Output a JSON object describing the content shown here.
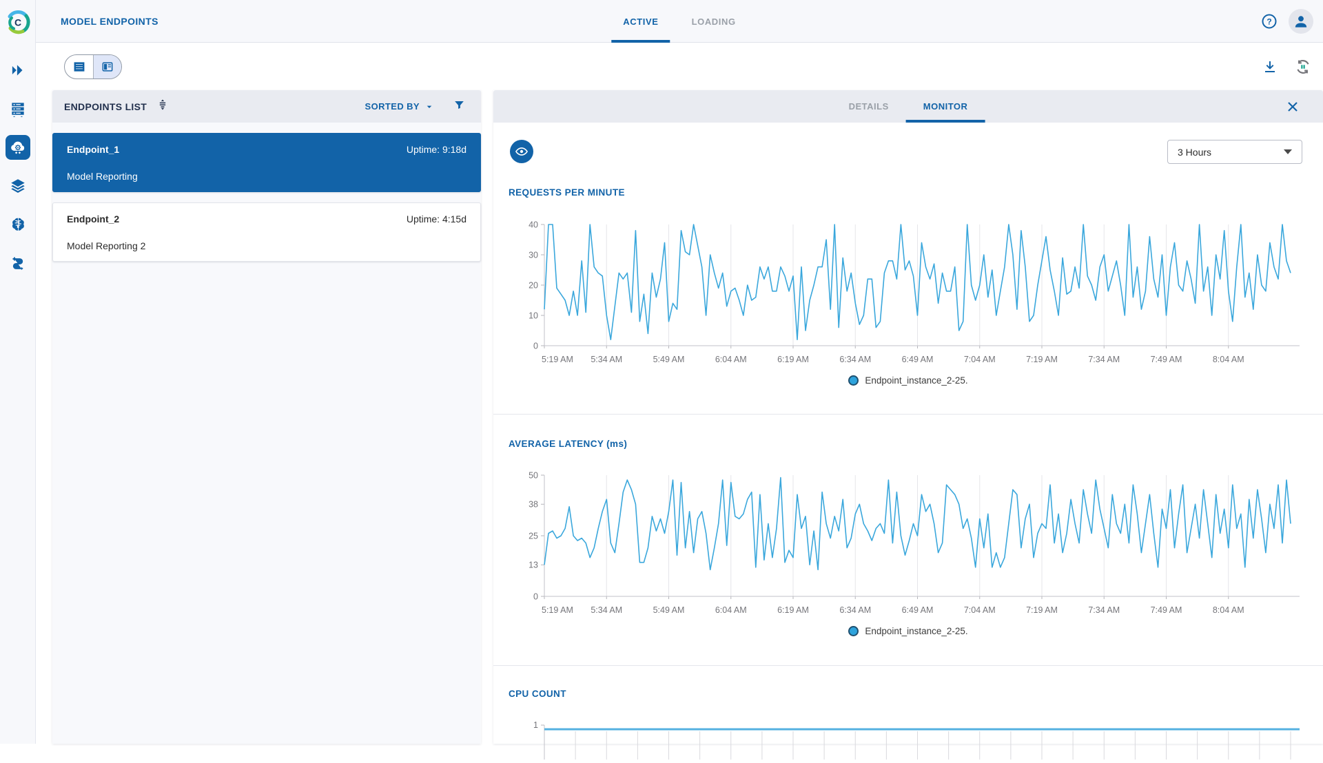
{
  "app": {
    "title": "MODEL ENDPOINTS",
    "accent_color": "#1263a8",
    "header_tabs": [
      {
        "label": "ACTIVE",
        "active": true
      },
      {
        "label": "LOADING",
        "active": false
      }
    ],
    "help_icon": "question-mark-circle",
    "user_icon": "person-avatar"
  },
  "sidebar": {
    "icons": [
      {
        "name": "expand-double-chevron-icon",
        "active": false
      },
      {
        "name": "server-rack-icon",
        "active": false
      },
      {
        "name": "model-endpoints-cloud-gear-icon",
        "active": true
      },
      {
        "name": "layers-icon",
        "active": false
      },
      {
        "name": "brain-icon",
        "active": false
      },
      {
        "name": "pipeline-flow-icon",
        "active": false
      }
    ]
  },
  "toolbar": {
    "view_toggle": [
      {
        "name": "table-view",
        "active": false
      },
      {
        "name": "split-view",
        "active": true
      }
    ],
    "actions": [
      {
        "name": "download"
      },
      {
        "name": "auto-refresh-pause"
      }
    ]
  },
  "endpoints_panel": {
    "title": "ENDPOINTS LIST",
    "sorted_by_label": "SORTED BY",
    "items": [
      {
        "name": "Endpoint_1",
        "uptime": "Uptime: 9:18d",
        "description": "Model Reporting",
        "selected": true
      },
      {
        "name": "Endpoint_2",
        "uptime": "Uptime: 4:15d",
        "description": "Model Reporting 2",
        "selected": false
      }
    ]
  },
  "monitor_panel": {
    "tabs": [
      {
        "label": "DETAILS",
        "active": false
      },
      {
        "label": "MONITOR",
        "active": true
      }
    ],
    "time_range_value": "3 Hours"
  },
  "chart_data": [
    {
      "type": "line",
      "title": "REQUESTS PER MINUTE",
      "series_label": "Endpoint_instance_2-25.",
      "color": "#3aa7dc",
      "x_labels": [
        "5:19 AM",
        "5:34 AM",
        "5:49 AM",
        "6:04 AM",
        "6:19 AM",
        "6:34 AM",
        "6:49 AM",
        "7:04 AM",
        "7:19 AM",
        "7:34 AM",
        "7:49 AM",
        "8:04 AM"
      ],
      "x_label_step_min": 15,
      "x_total_min": 180,
      "ylim": [
        0,
        40
      ],
      "yticks": [
        0,
        10,
        20,
        30,
        40
      ],
      "grid": "vertical-only",
      "legend_position": "bottom-center",
      "values": [
        12,
        40,
        40,
        19,
        17,
        15,
        10,
        18,
        10,
        28,
        11,
        40,
        26,
        24,
        23,
        10,
        2,
        13,
        24,
        22,
        24,
        11,
        38,
        8,
        17,
        4,
        24,
        16,
        22,
        34,
        8,
        14,
        12,
        38,
        31,
        30,
        40,
        33,
        26,
        10,
        30,
        24,
        19,
        24,
        13,
        18,
        19,
        15,
        10,
        20,
        15,
        16,
        26,
        22,
        26,
        18,
        18,
        26,
        23,
        18,
        23,
        2,
        26,
        5,
        15,
        20,
        26,
        26,
        35,
        12,
        40,
        6,
        29,
        18,
        24,
        14,
        7,
        10,
        22,
        22,
        6,
        8,
        24,
        28,
        28,
        22,
        40,
        25,
        28,
        23,
        10,
        34,
        26,
        22,
        27,
        14,
        24,
        18,
        18,
        26,
        5,
        8,
        40,
        20,
        15,
        20,
        30,
        16,
        25,
        10,
        18,
        26,
        40,
        30,
        12,
        38,
        26,
        8,
        10,
        20,
        28,
        36,
        25,
        18,
        10,
        29,
        17,
        18,
        26,
        19,
        40,
        23,
        20,
        15,
        26,
        30,
        18,
        23,
        28,
        20,
        10,
        40,
        16,
        26,
        12,
        18,
        36,
        22,
        16,
        30,
        10,
        26,
        34,
        20,
        18,
        28,
        22,
        14,
        40,
        18,
        26,
        10,
        30,
        22,
        38,
        18,
        8,
        26,
        40,
        16,
        24,
        12,
        30,
        20,
        18,
        34,
        26,
        22,
        40,
        28,
        24
      ]
    },
    {
      "type": "line",
      "title": "AVERAGE LATENCY (ms)",
      "series_label": "Endpoint_instance_2-25.",
      "color": "#3aa7dc",
      "x_labels": [
        "5:19 AM",
        "5:34 AM",
        "5:49 AM",
        "6:04 AM",
        "6:19 AM",
        "6:34 AM",
        "6:49 AM",
        "7:04 AM",
        "7:19 AM",
        "7:34 AM",
        "7:49 AM",
        "8:04 AM"
      ],
      "x_label_step_min": 15,
      "x_total_min": 180,
      "ylim": [
        0,
        50
      ],
      "yticks": [
        0,
        13,
        25,
        38,
        50
      ],
      "grid": "vertical-only",
      "legend_position": "bottom-center",
      "values": [
        13,
        26,
        27,
        24,
        25,
        28,
        37,
        25,
        23,
        24,
        22,
        16,
        20,
        28,
        35,
        40,
        22,
        18,
        30,
        43,
        48,
        44,
        38,
        14,
        14,
        20,
        33,
        27,
        32,
        26,
        35,
        48,
        17,
        47,
        20,
        35,
        18,
        32,
        35,
        26,
        11,
        20,
        30,
        48,
        21,
        47,
        33,
        32,
        34,
        40,
        43,
        12,
        42,
        15,
        30,
        16,
        28,
        49,
        14,
        19,
        16,
        42,
        28,
        33,
        13,
        27,
        11,
        43,
        30,
        24,
        33,
        27,
        40,
        20,
        24,
        34,
        38,
        30,
        27,
        23,
        28,
        30,
        26,
        48,
        22,
        43,
        25,
        17,
        23,
        30,
        25,
        42,
        35,
        38,
        30,
        18,
        22,
        46,
        44,
        42,
        38,
        28,
        32,
        24,
        12,
        32,
        20,
        34,
        12,
        18,
        12,
        16,
        30,
        44,
        42,
        20,
        32,
        38,
        16,
        26,
        30,
        28,
        46,
        22,
        34,
        18,
        26,
        40,
        30,
        22,
        44,
        34,
        26,
        48,
        36,
        28,
        20,
        42,
        30,
        26,
        38,
        22,
        46,
        34,
        18,
        30,
        42,
        26,
        12,
        36,
        28,
        44,
        20,
        34,
        46,
        18,
        28,
        38,
        24,
        44,
        30,
        16,
        42,
        26,
        36,
        20,
        46,
        28,
        34,
        12,
        40,
        24,
        44,
        32,
        18,
        38,
        28,
        46,
        22,
        48,
        30
      ]
    },
    {
      "type": "line",
      "title": "CPU COUNT",
      "color": "#54b1e0",
      "ylim": [
        0,
        1
      ],
      "yticks": [
        1
      ],
      "constant_value": 1,
      "note_partially_cut_off": true
    }
  ]
}
